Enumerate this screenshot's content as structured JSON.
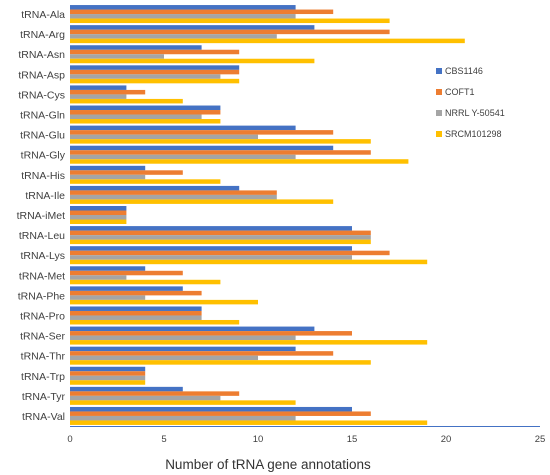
{
  "chart_data": {
    "type": "bar",
    "orientation": "horizontal",
    "title": "",
    "xlabel": "Number of tRNA gene annotations",
    "ylabel": "",
    "xlim": [
      0,
      25
    ],
    "xticks": [
      0,
      5,
      10,
      15,
      20,
      25
    ],
    "grid": false,
    "legend_position": "right",
    "categories": [
      "tRNA-Ala",
      "tRNA-Arg",
      "tRNA-Asn",
      "tRNA-Asp",
      "tRNA-Cys",
      "tRNA-Gln",
      "tRNA-Glu",
      "tRNA-Gly",
      "tRNA-His",
      "tRNA-Ile",
      "tRNA-iMet",
      "tRNA-Leu",
      "tRNA-Lys",
      "tRNA-Met",
      "tRNA-Phe",
      "tRNA-Pro",
      "tRNA-Ser",
      "tRNA-Thr",
      "tRNA-Trp",
      "tRNA-Tyr",
      "tRNA-Val"
    ],
    "series": [
      {
        "name": "CBS1146",
        "color": "#4472c4",
        "values": [
          12,
          13,
          7,
          9,
          3,
          8,
          12,
          14,
          4,
          9,
          3,
          15,
          15,
          4,
          6,
          7,
          13,
          12,
          4,
          6,
          15
        ]
      },
      {
        "name": "COFT1",
        "color": "#ed7d31",
        "values": [
          14,
          17,
          9,
          9,
          4,
          8,
          14,
          16,
          6,
          11,
          3,
          16,
          17,
          6,
          7,
          7,
          15,
          14,
          4,
          9,
          16
        ]
      },
      {
        "name": "NRRL Y-50541",
        "color": "#a5a5a5",
        "values": [
          12,
          11,
          5,
          8,
          3,
          7,
          10,
          12,
          4,
          11,
          3,
          16,
          15,
          3,
          4,
          7,
          12,
          10,
          4,
          8,
          12
        ]
      },
      {
        "name": "SRCM101298",
        "color": "#ffc000",
        "values": [
          17,
          21,
          13,
          9,
          6,
          8,
          16,
          18,
          8,
          14,
          3,
          16,
          19,
          8,
          10,
          9,
          19,
          16,
          4,
          12,
          19
        ]
      }
    ]
  }
}
